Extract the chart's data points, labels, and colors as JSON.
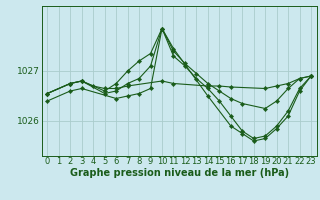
{
  "background_color": "#cce8ee",
  "grid_color": "#aacccc",
  "line_color": "#1a5c1a",
  "xlabel": "Graphe pression niveau de la mer (hPa)",
  "xlabel_fontsize": 7,
  "tick_fontsize": 6,
  "ytick_labels": [
    "1026",
    "1027"
  ],
  "ytick_values": [
    1026,
    1027
  ],
  "ylim": [
    1025.3,
    1028.3
  ],
  "xlim": [
    -0.5,
    23.5
  ],
  "xtick_values": [
    0,
    1,
    2,
    3,
    4,
    5,
    6,
    7,
    8,
    9,
    10,
    11,
    12,
    13,
    14,
    15,
    16,
    17,
    18,
    19,
    20,
    21,
    22,
    23
  ],
  "series": [
    {
      "x": [
        0,
        2,
        3,
        4,
        5,
        6,
        7,
        10,
        11,
        14,
        15,
        16,
        19,
        20,
        21,
        22,
        23
      ],
      "y": [
        1026.55,
        1026.75,
        1026.8,
        1026.7,
        1026.65,
        1026.65,
        1026.7,
        1026.8,
        1026.75,
        1026.7,
        1026.7,
        1026.68,
        1026.65,
        1026.7,
        1026.75,
        1026.85,
        1026.9
      ]
    },
    {
      "x": [
        0,
        2,
        3,
        5,
        6,
        7,
        8,
        9,
        10,
        11,
        12,
        13,
        14,
        15,
        16,
        17,
        19,
        20,
        21,
        22,
        23
      ],
      "y": [
        1026.55,
        1026.75,
        1026.8,
        1026.6,
        1026.75,
        1027.0,
        1027.2,
        1027.35,
        1027.85,
        1027.4,
        1027.15,
        1026.95,
        1026.75,
        1026.6,
        1026.45,
        1026.35,
        1026.25,
        1026.4,
        1026.65,
        1026.85,
        1026.9
      ]
    },
    {
      "x": [
        0,
        2,
        3,
        5,
        6,
        7,
        8,
        9,
        10,
        11,
        12,
        13,
        14,
        15,
        16,
        17,
        18,
        19,
        20,
        21,
        22,
        23
      ],
      "y": [
        1026.55,
        1026.75,
        1026.8,
        1026.55,
        1026.6,
        1026.75,
        1026.85,
        1027.1,
        1027.85,
        1027.3,
        1027.1,
        1026.85,
        1026.65,
        1026.4,
        1026.1,
        1025.8,
        1025.65,
        1025.7,
        1025.9,
        1026.2,
        1026.65,
        1026.9
      ]
    },
    {
      "x": [
        0,
        2,
        3,
        6,
        7,
        8,
        9,
        10,
        11,
        14,
        16,
        17,
        18,
        19,
        20,
        21,
        22,
        23
      ],
      "y": [
        1026.4,
        1026.6,
        1026.65,
        1026.45,
        1026.5,
        1026.55,
        1026.65,
        1027.85,
        1027.45,
        1026.5,
        1025.9,
        1025.75,
        1025.6,
        1025.65,
        1025.85,
        1026.1,
        1026.6,
        1026.9
      ]
    }
  ]
}
